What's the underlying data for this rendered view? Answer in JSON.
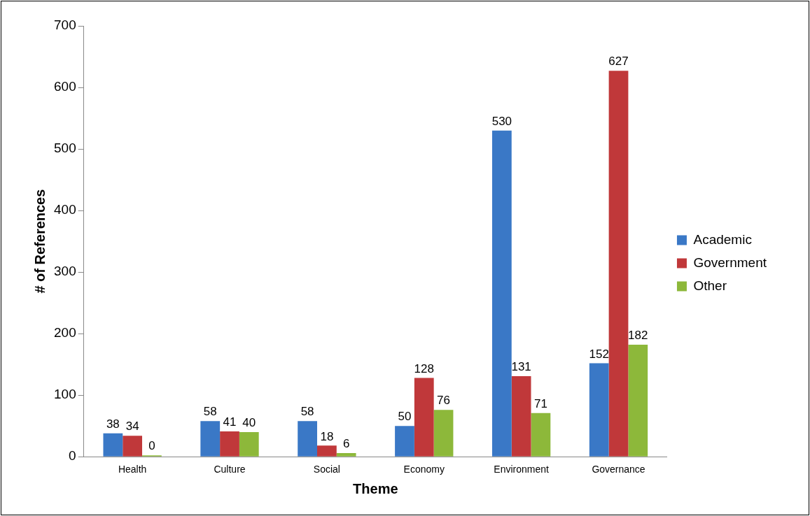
{
  "chart_data": {
    "type": "bar",
    "xlabel": "Theme",
    "ylabel": "# of References",
    "categories": [
      "Health",
      "Culture",
      "Social",
      "Economy",
      "Environment",
      "Governance"
    ],
    "series": [
      {
        "name": "Academic",
        "color": "#3a78c6",
        "values": [
          38,
          58,
          58,
          50,
          530,
          152
        ]
      },
      {
        "name": "Government",
        "color": "#c0383a",
        "values": [
          34,
          41,
          18,
          128,
          131,
          627
        ]
      },
      {
        "name": "Other",
        "color": "#8db83a",
        "values": [
          0,
          40,
          6,
          76,
          71,
          182
        ]
      }
    ],
    "ylim": [
      0,
      700
    ],
    "yticks": [
      0,
      100,
      200,
      300,
      400,
      500,
      600,
      700
    ],
    "grid": false,
    "legend": "right",
    "data_labels": true
  }
}
